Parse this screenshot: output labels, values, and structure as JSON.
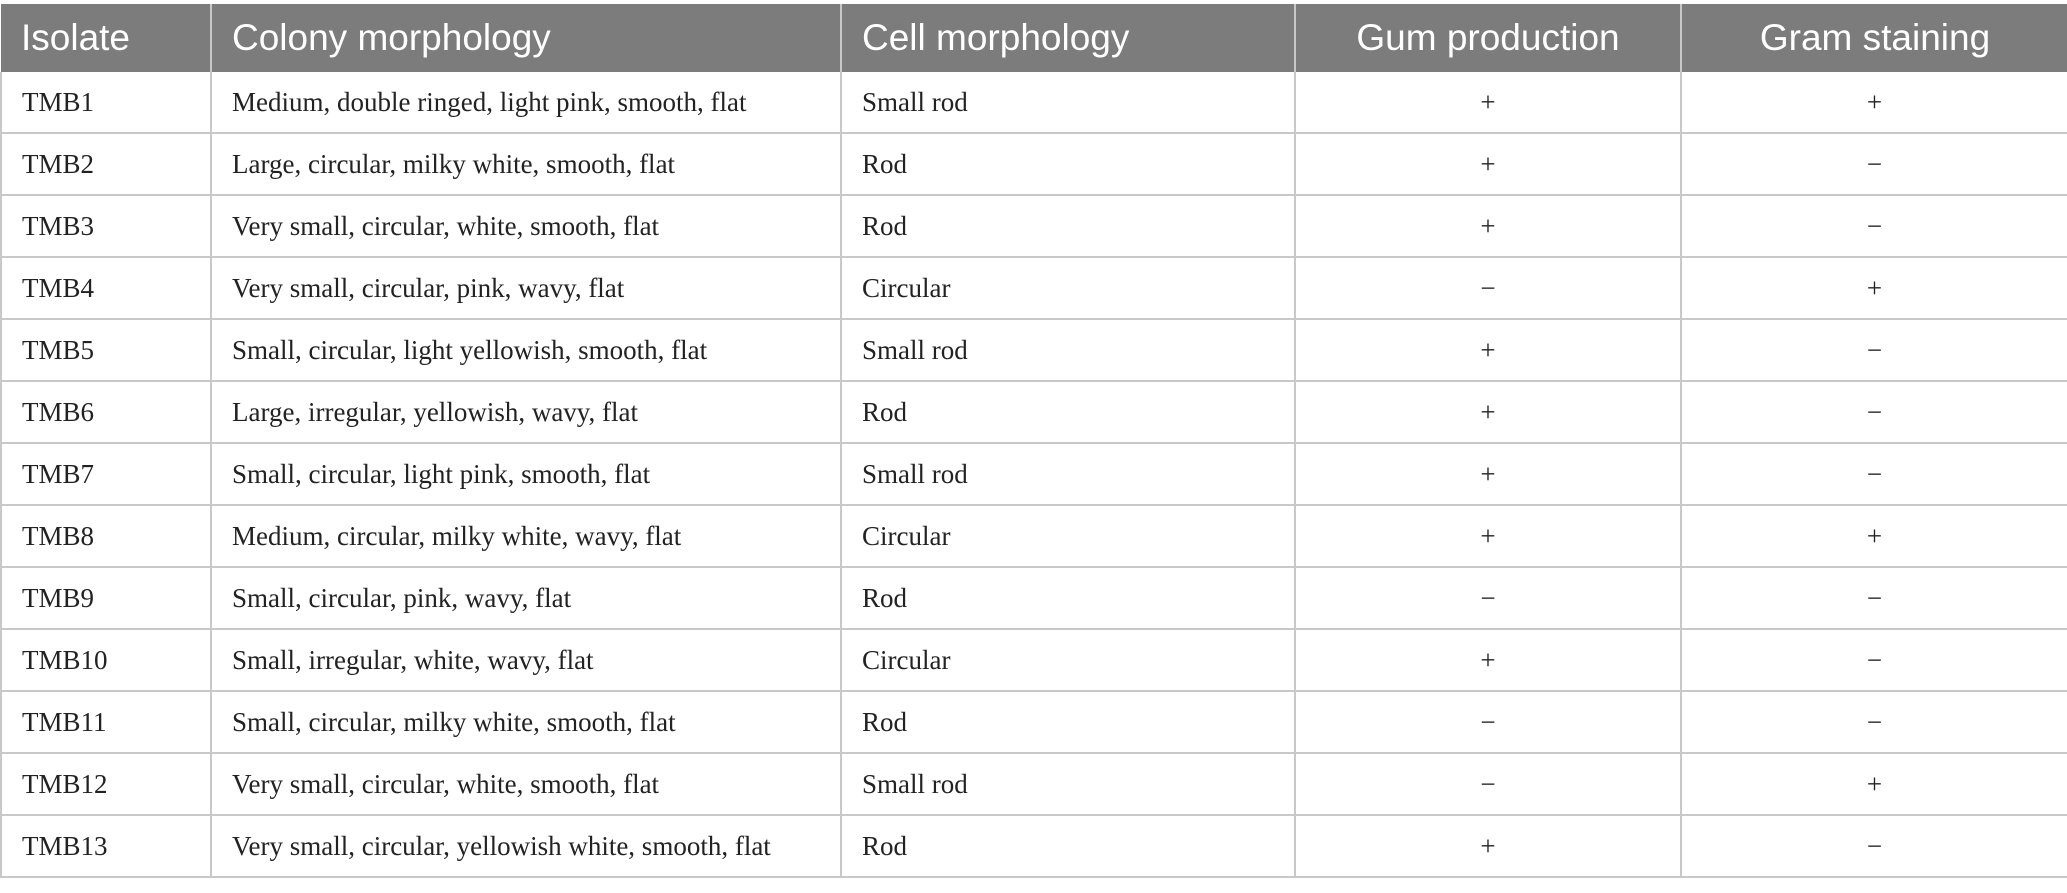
{
  "table": {
    "headers": [
      "Isolate",
      "Colony morphology",
      "Cell morphology",
      "Gum production",
      "Gram staining"
    ],
    "rows": [
      [
        "TMB1",
        "Medium, double ringed, light pink, smooth, flat",
        "Small rod",
        "+",
        "+"
      ],
      [
        "TMB2",
        "Large, circular, milky white, smooth, flat",
        "Rod",
        "+",
        "−"
      ],
      [
        "TMB3",
        "Very small, circular, white, smooth, flat",
        "Rod",
        "+",
        "−"
      ],
      [
        "TMB4",
        "Very small, circular, pink, wavy, flat",
        "Circular",
        "−",
        "+"
      ],
      [
        "TMB5",
        "Small, circular, light yellowish, smooth, flat",
        "Small rod",
        "+",
        "−"
      ],
      [
        "TMB6",
        "Large, irregular, yellowish, wavy, flat",
        "Rod",
        "+",
        "−"
      ],
      [
        "TMB7",
        "Small, circular, light pink, smooth, flat",
        "Small rod",
        "+",
        "−"
      ],
      [
        "TMB8",
        "Medium, circular, milky white, wavy, flat",
        "Circular",
        "+",
        "+"
      ],
      [
        "TMB9",
        "Small, circular, pink, wavy, flat",
        "Rod",
        "−",
        "−"
      ],
      [
        "TMB10",
        "Small, irregular, white, wavy, flat",
        "Circular",
        "+",
        "−"
      ],
      [
        "TMB11",
        "Small, circular, milky white, smooth, flat",
        "Rod",
        "−",
        "−"
      ],
      [
        "TMB12",
        "Very small, circular, white, smooth, flat",
        "Small rod",
        "−",
        "+"
      ],
      [
        "TMB13",
        "Very small, circular, yellowish white, smooth, flat",
        "Rod",
        "+",
        "−"
      ]
    ]
  },
  "colors": {
    "header_background": "#7b7c7b",
    "header_text": "#ffffff",
    "grid_line": "#c8c8c8"
  }
}
